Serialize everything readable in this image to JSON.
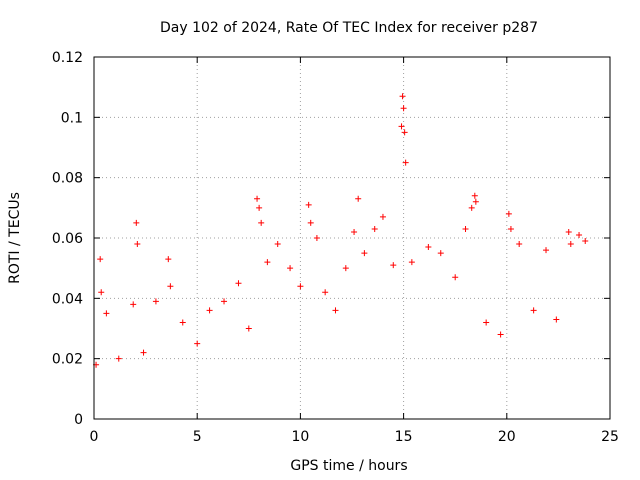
{
  "chart_data": {
    "type": "scatter",
    "title": "Day 102 of 2024, Rate Of TEC Index for receiver p287",
    "xlabel": "GPS time / hours",
    "ylabel": "ROTI / TECUs",
    "xlim": [
      0,
      25
    ],
    "ylim": [
      0,
      0.12
    ],
    "x_ticks": [
      "0",
      "5",
      "10",
      "15",
      "20",
      "25"
    ],
    "y_ticks": [
      "0",
      "0.02",
      "0.04",
      "0.06",
      "0.08",
      "0.1",
      "0.12"
    ],
    "grid": true,
    "marker": "+",
    "series_color": "#ff0000",
    "series": [
      {
        "x": [
          0.1,
          0.3,
          0.35,
          0.6,
          1.2,
          1.9,
          2.05,
          2.1,
          2.4,
          3.0,
          3.6,
          3.7,
          4.3,
          5.0,
          5.6,
          6.3,
          7.0,
          7.5,
          7.9,
          8.0,
          8.1,
          8.4,
          8.9,
          9.5,
          10.0,
          10.4,
          10.5,
          10.8,
          11.2,
          11.7,
          12.2,
          12.6,
          12.8,
          13.1,
          13.6,
          14.0,
          14.5,
          14.9,
          14.95,
          15.0,
          15.05,
          15.1,
          15.4,
          16.2,
          16.8,
          17.5,
          18.0,
          18.3,
          18.45,
          18.5,
          19.0,
          19.7,
          20.1,
          20.2,
          20.6,
          21.3,
          21.9,
          22.4,
          23.0,
          23.1,
          23.5,
          23.8
        ],
        "y": [
          0.018,
          0.053,
          0.042,
          0.035,
          0.02,
          0.038,
          0.065,
          0.058,
          0.022,
          0.039,
          0.053,
          0.044,
          0.032,
          0.025,
          0.036,
          0.039,
          0.045,
          0.03,
          0.073,
          0.07,
          0.065,
          0.052,
          0.058,
          0.05,
          0.044,
          0.071,
          0.065,
          0.06,
          0.042,
          0.036,
          0.05,
          0.062,
          0.073,
          0.055,
          0.063,
          0.067,
          0.051,
          0.097,
          0.107,
          0.103,
          0.095,
          0.085,
          0.052,
          0.057,
          0.055,
          0.047,
          0.063,
          0.07,
          0.074,
          0.072,
          0.032,
          0.028,
          0.068,
          0.063,
          0.058,
          0.036,
          0.056,
          0.033,
          0.062,
          0.058,
          0.061,
          0.059
        ]
      }
    ]
  }
}
